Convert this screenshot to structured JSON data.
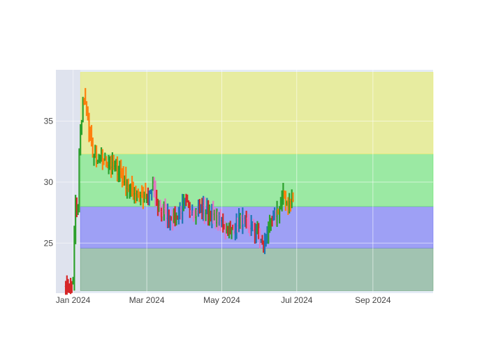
{
  "chart_data": {
    "type": "ohlc",
    "title": "",
    "xlabel": "",
    "ylabel": "",
    "x_axis": {
      "type": "date",
      "range": [
        "2023-12-18",
        "2024-10-20"
      ],
      "ticks": [
        {
          "date": "2024-01-01",
          "label": "Jan 2024"
        },
        {
          "date": "2024-03-01",
          "label": "Mar 2024"
        },
        {
          "date": "2024-05-01",
          "label": "May 2024"
        },
        {
          "date": "2024-07-01",
          "label": "Jul 2024"
        },
        {
          "date": "2024-09-01",
          "label": "Sep 2024"
        }
      ]
    },
    "y_axis": {
      "range": [
        20.9,
        39.2
      ],
      "ticks": [
        {
          "value": 25,
          "label": "25"
        },
        {
          "value": 30,
          "label": "30"
        },
        {
          "value": 35,
          "label": "35"
        }
      ]
    },
    "grid": true,
    "legend": "none",
    "bands": [
      {
        "y0": 21.1,
        "y1": 24.6,
        "x0": "2024-01-07",
        "x1": "2024-10-20",
        "color": "#6aa378",
        "opacity": 0.55
      },
      {
        "y0": 24.6,
        "y1": 28.0,
        "x0": "2024-01-07",
        "x1": "2024-10-20",
        "color": "#6e6ef5",
        "opacity": 0.6
      },
      {
        "y0": 28.0,
        "y1": 32.3,
        "x0": "2024-01-07",
        "x1": "2024-10-20",
        "color": "#5fe85f",
        "opacity": 0.55
      },
      {
        "y0": 32.3,
        "y1": 39.0,
        "x0": "2024-01-07",
        "x1": "2024-10-20",
        "color": "#e8ec72",
        "opacity": 0.65
      }
    ],
    "highlight": {
      "x0": "2023-12-18",
      "x1": "2024-01-07",
      "color": "#dfe3ee"
    },
    "bar_colors": {
      "up": "#2ca02c",
      "down": "#d62728",
      "up_alt": "#1f77b4",
      "down_alt": "#e377c2",
      "up_hot": "#ff7f0e",
      "down_hot": "#9467bd"
    },
    "trend": [
      [
        "2023-12-26",
        21.9
      ],
      [
        "2023-12-28",
        21.4
      ],
      [
        "2023-12-30",
        21.3
      ],
      [
        "2024-01-01",
        22.0
      ],
      [
        "2024-01-02",
        25.5
      ],
      [
        "2024-01-03",
        27.9
      ],
      [
        "2024-01-05",
        28.0
      ],
      [
        "2024-01-06",
        32.1
      ],
      [
        "2024-01-08",
        35.2
      ],
      [
        "2024-01-09",
        37.0
      ],
      [
        "2024-01-12",
        36.0
      ],
      [
        "2024-01-14",
        34.2
      ],
      [
        "2024-01-17",
        32.4
      ],
      [
        "2024-01-20",
        31.5
      ],
      [
        "2024-01-25",
        32.0
      ],
      [
        "2024-02-01",
        31.4
      ],
      [
        "2024-02-08",
        30.9
      ],
      [
        "2024-02-15",
        29.5
      ],
      [
        "2024-02-22",
        29.2
      ],
      [
        "2024-03-01",
        28.6
      ],
      [
        "2024-03-06",
        29.6
      ],
      [
        "2024-03-10",
        28.0
      ],
      [
        "2024-03-18",
        27.3
      ],
      [
        "2024-03-25",
        27.1
      ],
      [
        "2024-04-01",
        28.3
      ],
      [
        "2024-04-08",
        27.5
      ],
      [
        "2024-04-15",
        27.8
      ],
      [
        "2024-04-22",
        27.4
      ],
      [
        "2024-05-01",
        26.7
      ],
      [
        "2024-05-08",
        25.9
      ],
      [
        "2024-05-15",
        26.9
      ],
      [
        "2024-05-22",
        26.6
      ],
      [
        "2024-05-30",
        25.9
      ],
      [
        "2024-06-04",
        24.7
      ],
      [
        "2024-06-07",
        25.8
      ],
      [
        "2024-06-12",
        27.1
      ],
      [
        "2024-06-17",
        28.0
      ],
      [
        "2024-06-20",
        28.9
      ],
      [
        "2024-06-24",
        28.3
      ],
      [
        "2024-06-28",
        28.5
      ]
    ]
  }
}
